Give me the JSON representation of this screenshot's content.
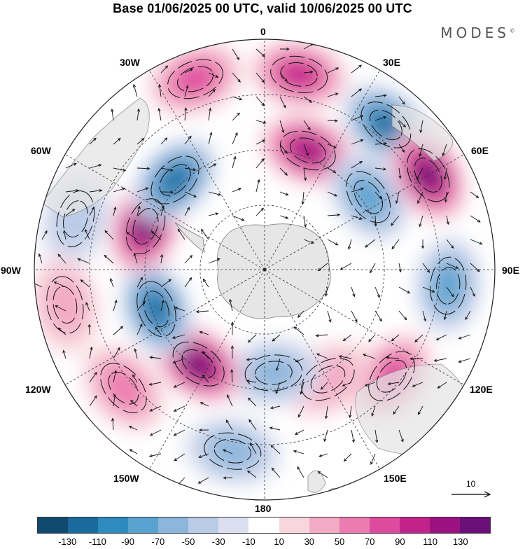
{
  "title": "Base 01/06/2025 00 UTC, valid 10/06/2025 00 UTC",
  "brand": "MODES",
  "brand_mark": "©",
  "longitude_labels": {
    "lon_0": "0",
    "lon_30e": "30E",
    "lon_60e": "60E",
    "lon_90e": "90E",
    "lon_120e": "120E",
    "lon_150e": "150E",
    "lon_180": "180",
    "lon_150w": "150W",
    "lon_120w": "120W",
    "lon_90w": "90W",
    "lon_60w": "60W",
    "lon_30w": "30W"
  },
  "reference_vector": {
    "label": "10"
  },
  "colorbar": {
    "colors": [
      "#0f4a6e",
      "#1a6a9e",
      "#2f8ac0",
      "#5aa2cf",
      "#8cb6dc",
      "#b9cbe6",
      "#dcdff0",
      "#ffffff",
      "#f8d6de",
      "#f3aac4",
      "#ec7cb0",
      "#de4b9e",
      "#c3228b",
      "#9b117f",
      "#6a1078"
    ],
    "tick_labels": [
      "-130",
      "-110",
      "-90",
      "-70",
      "-50",
      "-30",
      "-10",
      "10",
      "30",
      "50",
      "70",
      "90",
      "110",
      "130"
    ]
  },
  "anomaly_cells": [
    {
      "lon": 10,
      "r": 0.86,
      "value": 90
    },
    {
      "lon": -20,
      "r": 0.88,
      "value": 70
    },
    {
      "lon": 20,
      "r": 0.55,
      "value": 110
    },
    {
      "lon": 40,
      "r": 0.82,
      "value": -110
    },
    {
      "lon": 55,
      "r": 0.55,
      "value": -70
    },
    {
      "lon": 60,
      "r": 0.82,
      "value": 130
    },
    {
      "lon": 95,
      "r": 0.8,
      "value": -70
    },
    {
      "lon": 130,
      "r": 0.72,
      "value": 70
    },
    {
      "lon": 150,
      "r": 0.55,
      "value": 30
    },
    {
      "lon": 175,
      "r": 0.45,
      "value": -50
    },
    {
      "lon": -170,
      "r": 0.8,
      "value": -50
    },
    {
      "lon": -145,
      "r": 0.5,
      "value": 130
    },
    {
      "lon": -130,
      "r": 0.8,
      "value": 50
    },
    {
      "lon": -110,
      "r": 0.5,
      "value": -110
    },
    {
      "lon": -70,
      "r": 0.55,
      "value": 130
    },
    {
      "lon": -75,
      "r": 0.85,
      "value": -30
    },
    {
      "lon": -45,
      "r": 0.55,
      "value": -110
    },
    {
      "lon": -100,
      "r": 0.88,
      "value": 30
    }
  ]
}
